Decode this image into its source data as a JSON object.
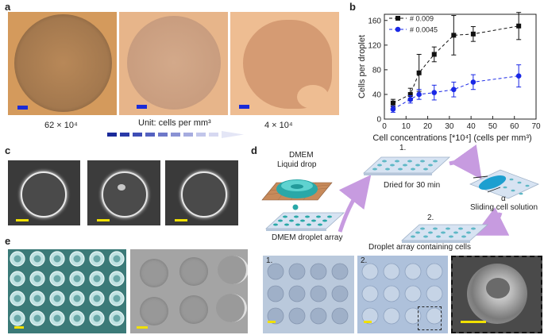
{
  "figure": {
    "panel_labels": {
      "a": "a",
      "b": "b",
      "c": "c",
      "d": "d",
      "e": "e"
    },
    "panel_a": {
      "left_label": "62 × 10⁴",
      "right_label": "4 × 10⁴",
      "unit_label": "Unit: cells per mm³"
    },
    "panel_d": {
      "dmem_line1": "DMEM",
      "dmem_line2": "Liquid drop",
      "step1_num": "1.",
      "step1_text": "Dried for 30 min",
      "step2_num": "2.",
      "step2_text": "Droplet array containing cells",
      "alpha": "α",
      "sliding_text": "Sliding cell solution",
      "array_text": "DMEM droplet array",
      "photo1_label": "1.",
      "photo2_label": "2."
    }
  },
  "chart_data": {
    "type": "scatter",
    "x_label": "Cell concentrations [*10⁴] (cells per mm³)",
    "y_label": "Cells per droplet",
    "xlim": [
      0,
      70
    ],
    "ylim": [
      0,
      170
    ],
    "x_ticks": [
      0,
      10,
      20,
      30,
      40,
      50,
      60,
      70
    ],
    "y_ticks": [
      0,
      40,
      80,
      120,
      160
    ],
    "legend_position": "top-left",
    "series": [
      {
        "name": "# 0.009",
        "color": "#111111",
        "marker": "square",
        "x": [
          4,
          12,
          16,
          23,
          32,
          41,
          62
        ],
        "y": [
          26,
          40,
          75,
          105,
          136,
          138,
          151
        ],
        "err": [
          6,
          10,
          30,
          12,
          32,
          12,
          22
        ]
      },
      {
        "name": "# 0.0045",
        "color": "#1a28e6",
        "marker": "circle",
        "x": [
          4,
          12,
          16,
          23,
          32,
          41,
          62
        ],
        "y": [
          16,
          32,
          40,
          43,
          48,
          60,
          70
        ],
        "err": [
          5,
          6,
          8,
          12,
          12,
          12,
          18
        ]
      }
    ]
  }
}
